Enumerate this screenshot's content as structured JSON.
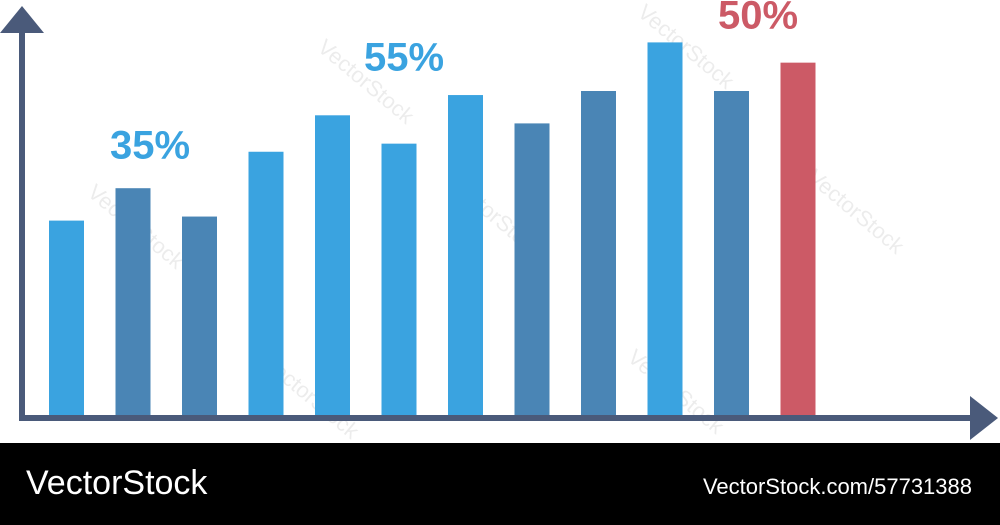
{
  "chart_data": {
    "type": "bar",
    "categories": [
      null,
      null,
      null,
      null,
      null,
      null,
      null,
      null,
      null,
      null,
      null,
      null
    ],
    "values": [
      48,
      56,
      49,
      65,
      74,
      67,
      79,
      72,
      80,
      92,
      80,
      87
    ],
    "colors": [
      "#3aa3e0",
      "#4a85b5",
      "#4a85b5",
      "#3aa3e0",
      "#3aa3e0",
      "#3aa3e0",
      "#3aa3e0",
      "#4a85b5",
      "#4a85b5",
      "#3aa3e0",
      "#4a85b5",
      "#cc5a66"
    ],
    "ylim": [
      0,
      100
    ],
    "annotations": [
      "35%",
      "55%",
      "50%"
    ],
    "watermark": "VectorStock",
    "footer": {
      "brand": "VectorStock",
      "id": "VectorStock.com/57731388"
    }
  }
}
